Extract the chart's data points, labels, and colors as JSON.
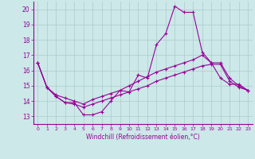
{
  "xlabel": "Windchill (Refroidissement éolien,°C)",
  "background_color": "#cce8e8",
  "grid_color": "#aacccc",
  "line_color": "#990099",
  "xlim": [
    -0.5,
    23.5
  ],
  "ylim": [
    12.5,
    20.5
  ],
  "yticks": [
    13,
    14,
    15,
    16,
    17,
    18,
    19,
    20
  ],
  "xticks": [
    0,
    1,
    2,
    3,
    4,
    5,
    6,
    7,
    8,
    9,
    10,
    11,
    12,
    13,
    14,
    15,
    16,
    17,
    18,
    19,
    20,
    21,
    22,
    23
  ],
  "line1_x": [
    0,
    1,
    2,
    3,
    4,
    5,
    6,
    7,
    8,
    9,
    10,
    11,
    12,
    13,
    14,
    15,
    16,
    17,
    18,
    19,
    20,
    21,
    22,
    23
  ],
  "line1_y": [
    16.5,
    14.9,
    14.3,
    13.9,
    13.9,
    13.1,
    13.1,
    13.3,
    14.0,
    14.7,
    14.6,
    15.7,
    15.5,
    17.7,
    18.4,
    20.2,
    19.8,
    19.8,
    17.2,
    16.5,
    15.5,
    15.1,
    15.1,
    14.7
  ],
  "line2_x": [
    0,
    1,
    2,
    3,
    4,
    5,
    6,
    7,
    8,
    9,
    10,
    11,
    12,
    13,
    14,
    15,
    16,
    17,
    18,
    19,
    20,
    21,
    22,
    23
  ],
  "line2_y": [
    16.5,
    14.9,
    14.4,
    14.2,
    14.0,
    13.8,
    14.1,
    14.3,
    14.5,
    14.7,
    15.0,
    15.3,
    15.6,
    15.9,
    16.1,
    16.3,
    16.5,
    16.7,
    17.0,
    16.5,
    16.5,
    15.5,
    15.0,
    14.7
  ],
  "line3_x": [
    0,
    1,
    2,
    3,
    4,
    5,
    6,
    7,
    8,
    9,
    10,
    11,
    12,
    13,
    14,
    15,
    16,
    17,
    18,
    19,
    20,
    21,
    22,
    23
  ],
  "line3_y": [
    16.5,
    14.9,
    14.3,
    13.9,
    13.8,
    13.6,
    13.8,
    14.0,
    14.2,
    14.4,
    14.6,
    14.8,
    15.0,
    15.3,
    15.5,
    15.7,
    15.9,
    16.1,
    16.3,
    16.4,
    16.4,
    15.3,
    14.9,
    14.7
  ]
}
